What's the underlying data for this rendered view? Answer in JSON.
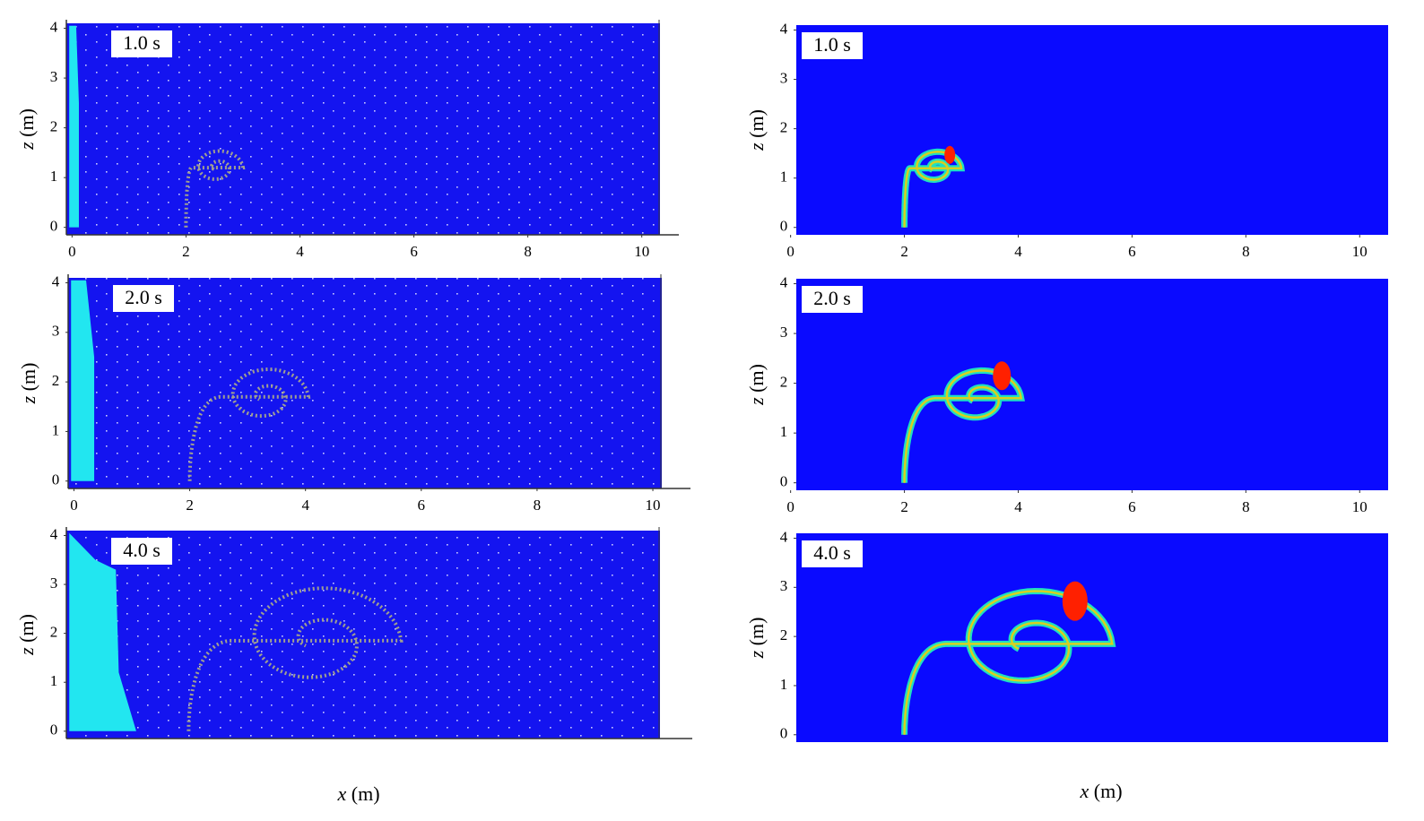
{
  "columns": [
    {
      "xlabel": {
        "var": "x",
        "unit": "(m)"
      },
      "xlim": [
        -0.1,
        10.65
      ],
      "ylim": [
        -0.15,
        4.1
      ],
      "panels": [
        {
          "time": "1.0 s",
          "xticks": [
            0,
            2,
            4,
            6,
            8,
            10
          ],
          "yticks": [
            0,
            1,
            2,
            3,
            4
          ],
          "ylabel": {
            "var": "z",
            "unit": "(m)"
          }
        },
        {
          "time": "2.0 s",
          "xticks": [
            0,
            2,
            4,
            6,
            8,
            10
          ],
          "yticks": [
            0,
            1,
            2,
            3,
            4
          ],
          "ylabel": {
            "var": "z",
            "unit": "(m)"
          }
        },
        {
          "time": "4.0 s",
          "yticks": [
            0,
            1,
            2,
            3,
            4
          ],
          "ylabel": {
            "var": "z",
            "unit": "(m)"
          }
        }
      ]
    },
    {
      "xlabel": {
        "var": "x",
        "unit": "(m)"
      },
      "xlim": [
        0.1,
        10.5
      ],
      "ylim": [
        -0.15,
        4.1
      ],
      "panels": [
        {
          "time": "1.0 s",
          "xticks": [
            0,
            2,
            4,
            6,
            8,
            10
          ],
          "yticks": [
            0,
            1,
            2,
            3,
            4
          ],
          "ylabel": {
            "var": "z",
            "unit": "(m)"
          }
        },
        {
          "time": "2.0 s",
          "xticks": [
            0,
            2,
            4,
            6,
            8,
            10
          ],
          "yticks": [
            0,
            1,
            2,
            3,
            4
          ],
          "ylabel": {
            "var": "z",
            "unit": "(m)"
          }
        },
        {
          "time": "4.0 s",
          "yticks": [
            0,
            1,
            2,
            3,
            4
          ],
          "ylabel": {
            "var": "z",
            "unit": "(m)"
          }
        }
      ]
    }
  ]
}
